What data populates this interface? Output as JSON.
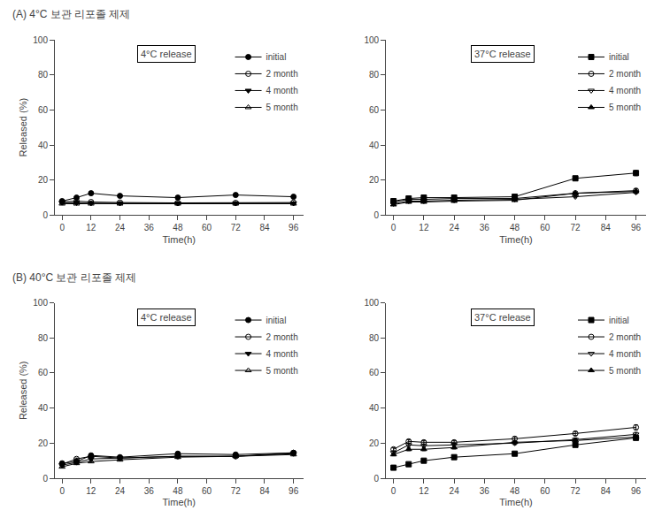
{
  "chart_data": [
    {
      "type": "line",
      "title": "4°C release",
      "annotations": [
        {
          "text": "(A) 4°C 보관 리포졸 제제"
        }
      ],
      "xlabel": "Time(h)",
      "ylabel": "Released (%)",
      "x": [
        0,
        6,
        12,
        24,
        48,
        72,
        96
      ],
      "xlim": [
        -3,
        100
      ],
      "xticks": [
        0,
        12,
        24,
        36,
        48,
        60,
        72,
        84,
        96
      ],
      "ylim": [
        0,
        100
      ],
      "yticks": [
        0,
        20,
        40,
        60,
        80,
        100
      ],
      "grid": false,
      "legend": "upper right",
      "series": [
        {
          "name": "initial",
          "color": "#000000",
          "marker": "circle",
          "line_style": "solid",
          "values": [
            8.0,
            10.0,
            12.5,
            11.0,
            10.0,
            11.5,
            10.5
          ],
          "errors": [
            0.5,
            0.5,
            0.7,
            0.6,
            0.5,
            0.6,
            0.5
          ]
        },
        {
          "name": "2 month",
          "color": "#000000",
          "marker": "circle-open",
          "line_style": "solid",
          "values": [
            7.5,
            8.0,
            7.5,
            7.2,
            7.0,
            7.0,
            7.2
          ],
          "errors": [
            0.4,
            0.4,
            0.4,
            0.4,
            0.3,
            0.3,
            0.3
          ]
        },
        {
          "name": "4 month",
          "color": "#000000",
          "marker": "triangle-down",
          "line_style": "solid",
          "values": [
            7.2,
            7.0,
            6.8,
            6.8,
            6.8,
            6.8,
            6.8
          ],
          "errors": [
            0.3,
            0.3,
            0.3,
            0.3,
            0.3,
            0.3,
            0.3
          ]
        },
        {
          "name": "5 month",
          "color": "#000000",
          "marker": "triangle-up-open",
          "line_style": "solid",
          "values": [
            6.5,
            6.5,
            6.5,
            6.5,
            6.5,
            6.5,
            6.5
          ],
          "errors": [
            0.3,
            0.3,
            0.3,
            0.3,
            0.3,
            0.3,
            0.3
          ]
        }
      ]
    },
    {
      "type": "line",
      "title": "37°C release",
      "xlabel": "Time(h)",
      "x": [
        0,
        6,
        12,
        24,
        48,
        72,
        96
      ],
      "xlim": [
        -3,
        100
      ],
      "xticks": [
        0,
        12,
        24,
        36,
        48,
        60,
        72,
        84,
        96
      ],
      "ylim": [
        0,
        100
      ],
      "yticks": [
        0,
        20,
        40,
        60,
        80,
        100
      ],
      "grid": false,
      "legend": "upper right",
      "series": [
        {
          "name": "initial",
          "color": "#000000",
          "marker": "square",
          "line_style": "solid",
          "values": [
            8.0,
            9.5,
            10.0,
            10.0,
            10.5,
            21.0,
            24.0
          ],
          "errors": [
            0.5,
            0.5,
            0.5,
            0.5,
            0.5,
            1.0,
            1.5
          ]
        },
        {
          "name": "2 month",
          "color": "#000000",
          "marker": "circle-open",
          "line_style": "solid",
          "values": [
            7.5,
            9.0,
            9.0,
            9.5,
            9.5,
            12.5,
            14.0
          ],
          "errors": [
            0.3,
            0.5,
            0.5,
            0.5,
            0.5,
            0.7,
            1.0
          ]
        },
        {
          "name": "4 month",
          "color": "#000000",
          "marker": "triangle-down-open",
          "line_style": "solid",
          "values": [
            6.5,
            8.0,
            8.0,
            8.5,
            9.0,
            10.5,
            13.0
          ],
          "errors": [
            0.3,
            0.4,
            0.4,
            0.4,
            0.4,
            0.6,
            0.8
          ]
        },
        {
          "name": "5 month",
          "color": "#000000",
          "marker": "triangle-up",
          "line_style": "solid",
          "values": [
            6.0,
            7.5,
            7.5,
            8.0,
            8.5,
            12.5,
            13.5
          ],
          "errors": [
            0.3,
            0.4,
            0.4,
            0.4,
            0.4,
            0.6,
            0.8
          ]
        }
      ]
    },
    {
      "type": "line",
      "title": "4°C release",
      "annotations": [
        {
          "text": "(B) 40°C 보관 리포졸 제제"
        }
      ],
      "xlabel": "Time(h)",
      "ylabel": "Released (%)",
      "x": [
        0,
        6,
        12,
        24,
        48,
        72,
        96
      ],
      "xlim": [
        -3,
        100
      ],
      "xticks": [
        0,
        12,
        24,
        36,
        48,
        60,
        72,
        84,
        96
      ],
      "ylim": [
        0,
        100
      ],
      "yticks": [
        0,
        20,
        40,
        60,
        80,
        100
      ],
      "grid": false,
      "legend": "upper right",
      "series": [
        {
          "name": "initial",
          "color": "#000000",
          "marker": "circle",
          "line_style": "solid",
          "values": [
            8.5,
            9.5,
            13.0,
            12.0,
            14.0,
            13.5,
            14.5
          ],
          "errors": [
            0.5,
            0.5,
            0.7,
            0.6,
            0.7,
            0.7,
            0.7
          ]
        },
        {
          "name": "2 month",
          "color": "#000000",
          "marker": "circle-open",
          "line_style": "solid",
          "values": [
            8.0,
            11.0,
            12.5,
            11.5,
            12.5,
            12.5,
            14.5
          ],
          "errors": [
            0.4,
            0.5,
            0.6,
            0.5,
            0.6,
            0.6,
            0.7
          ]
        },
        {
          "name": "4 month",
          "color": "#000000",
          "marker": "triangle-down",
          "line_style": "solid",
          "values": [
            7.5,
            9.0,
            11.0,
            11.5,
            12.5,
            12.5,
            14.0
          ],
          "errors": [
            0.4,
            0.5,
            0.5,
            0.5,
            0.6,
            0.6,
            0.7
          ]
        },
        {
          "name": "5 month",
          "color": "#000000",
          "marker": "triangle-up-open",
          "line_style": "solid",
          "values": [
            6.5,
            8.5,
            9.5,
            10.5,
            12.0,
            12.5,
            13.5
          ],
          "errors": [
            0.3,
            0.4,
            0.5,
            0.5,
            0.6,
            0.6,
            0.7
          ]
        }
      ]
    },
    {
      "type": "line",
      "title": "37°C release",
      "xlabel": "Time(h)",
      "x": [
        0,
        6,
        12,
        24,
        48,
        72,
        96
      ],
      "xlim": [
        -3,
        100
      ],
      "xticks": [
        0,
        12,
        24,
        36,
        48,
        60,
        72,
        84,
        96
      ],
      "ylim": [
        0,
        100
      ],
      "yticks": [
        0,
        20,
        40,
        60,
        80,
        100
      ],
      "grid": false,
      "legend": "upper right",
      "series": [
        {
          "name": "initial",
          "color": "#000000",
          "marker": "square",
          "line_style": "solid",
          "values": [
            6.0,
            8.0,
            10.0,
            12.0,
            14.0,
            19.0,
            23.0
          ],
          "errors": [
            0.5,
            0.5,
            0.5,
            0.6,
            0.7,
            0.8,
            1.0
          ]
        },
        {
          "name": "2 month",
          "color": "#000000",
          "marker": "circle-open",
          "line_style": "solid",
          "values": [
            16.5,
            21.0,
            20.5,
            20.5,
            22.5,
            25.5,
            29.0
          ],
          "errors": [
            0.8,
            1.0,
            1.0,
            1.0,
            1.1,
            1.2,
            1.5
          ]
        },
        {
          "name": "4 month",
          "color": "#000000",
          "marker": "triangle-down-open",
          "line_style": "solid",
          "values": [
            14.5,
            19.0,
            18.5,
            19.0,
            20.0,
            22.0,
            25.0
          ],
          "errors": [
            0.7,
            0.9,
            0.9,
            0.9,
            0.9,
            1.0,
            1.2
          ]
        },
        {
          "name": "5 month",
          "color": "#000000",
          "marker": "triangle-up",
          "line_style": "solid",
          "values": [
            13.5,
            16.5,
            16.5,
            17.5,
            20.5,
            21.5,
            23.5
          ],
          "errors": [
            0.7,
            0.8,
            0.8,
            0.8,
            1.0,
            1.0,
            1.2
          ]
        }
      ]
    }
  ]
}
